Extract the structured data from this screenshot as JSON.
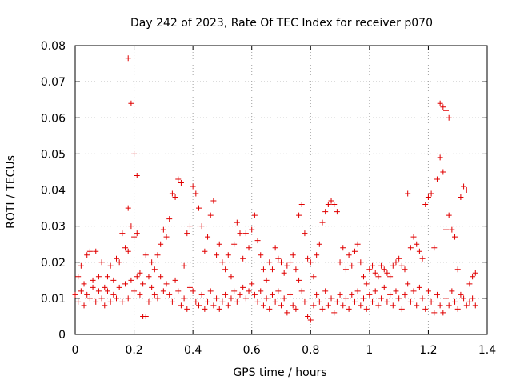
{
  "chart_data": {
    "type": "scatter",
    "title": "Day 242 of 2023, Rate Of TEC Index for receiver p070",
    "xlabel": "GPS time / hours",
    "ylabel": "ROTI / TECUs",
    "xlim": [
      0,
      1.4
    ],
    "ylim": [
      0,
      0.08
    ],
    "xticks": [
      "0",
      "0.2",
      "0.4",
      "0.6",
      "0.8",
      "1",
      "1.2",
      "1.4"
    ],
    "yticks": [
      "0",
      "0.01",
      "0.02",
      "0.03",
      "0.04",
      "0.05",
      "0.06",
      "0.07",
      "0.08"
    ],
    "grid": true,
    "marker": "+",
    "color": "#e00000",
    "series": [
      {
        "points": [
          [
            0.0,
            0.011
          ],
          [
            0.01,
            0.016
          ],
          [
            0.01,
            0.009
          ],
          [
            0.02,
            0.019
          ],
          [
            0.02,
            0.012
          ],
          [
            0.03,
            0.014
          ],
          [
            0.03,
            0.008
          ],
          [
            0.04,
            0.022
          ],
          [
            0.04,
            0.011
          ],
          [
            0.05,
            0.023
          ],
          [
            0.05,
            0.01
          ],
          [
            0.06,
            0.015
          ],
          [
            0.06,
            0.013
          ],
          [
            0.07,
            0.023
          ],
          [
            0.07,
            0.009
          ],
          [
            0.08,
            0.012
          ],
          [
            0.08,
            0.016
          ],
          [
            0.09,
            0.02
          ],
          [
            0.09,
            0.01
          ],
          [
            0.1,
            0.013
          ],
          [
            0.1,
            0.008
          ],
          [
            0.11,
            0.016
          ],
          [
            0.11,
            0.012
          ],
          [
            0.12,
            0.019
          ],
          [
            0.12,
            0.009
          ],
          [
            0.13,
            0.011
          ],
          [
            0.13,
            0.015
          ],
          [
            0.14,
            0.021
          ],
          [
            0.14,
            0.01
          ],
          [
            0.15,
            0.02
          ],
          [
            0.15,
            0.013
          ],
          [
            0.16,
            0.028
          ],
          [
            0.16,
            0.009
          ],
          [
            0.17,
            0.024
          ],
          [
            0.17,
            0.014
          ],
          [
            0.18,
            0.0765
          ],
          [
            0.18,
            0.035
          ],
          [
            0.18,
            0.023
          ],
          [
            0.18,
            0.01
          ],
          [
            0.19,
            0.064
          ],
          [
            0.19,
            0.03
          ],
          [
            0.19,
            0.015
          ],
          [
            0.2,
            0.05
          ],
          [
            0.2,
            0.027
          ],
          [
            0.2,
            0.012
          ],
          [
            0.21,
            0.044
          ],
          [
            0.21,
            0.028
          ],
          [
            0.21,
            0.016
          ],
          [
            0.22,
            0.017
          ],
          [
            0.22,
            0.011
          ],
          [
            0.23,
            0.005
          ],
          [
            0.23,
            0.014
          ],
          [
            0.24,
            0.005
          ],
          [
            0.24,
            0.022
          ],
          [
            0.25,
            0.016
          ],
          [
            0.25,
            0.009
          ],
          [
            0.26,
            0.02
          ],
          [
            0.26,
            0.013
          ],
          [
            0.27,
            0.018
          ],
          [
            0.27,
            0.011
          ],
          [
            0.28,
            0.022
          ],
          [
            0.28,
            0.01
          ],
          [
            0.29,
            0.025
          ],
          [
            0.29,
            0.016
          ],
          [
            0.3,
            0.029
          ],
          [
            0.3,
            0.012
          ],
          [
            0.31,
            0.027
          ],
          [
            0.31,
            0.014
          ],
          [
            0.32,
            0.032
          ],
          [
            0.32,
            0.011
          ],
          [
            0.33,
            0.039
          ],
          [
            0.33,
            0.009
          ],
          [
            0.34,
            0.038
          ],
          [
            0.34,
            0.015
          ],
          [
            0.35,
            0.043
          ],
          [
            0.35,
            0.012
          ],
          [
            0.36,
            0.042
          ],
          [
            0.36,
            0.008
          ],
          [
            0.37,
            0.019
          ],
          [
            0.37,
            0.01
          ],
          [
            0.38,
            0.028
          ],
          [
            0.38,
            0.007
          ],
          [
            0.39,
            0.03
          ],
          [
            0.39,
            0.013
          ],
          [
            0.4,
            0.041
          ],
          [
            0.4,
            0.012
          ],
          [
            0.41,
            0.039
          ],
          [
            0.41,
            0.009
          ],
          [
            0.42,
            0.035
          ],
          [
            0.42,
            0.008
          ],
          [
            0.43,
            0.03
          ],
          [
            0.43,
            0.011
          ],
          [
            0.44,
            0.023
          ],
          [
            0.44,
            0.007
          ],
          [
            0.45,
            0.027
          ],
          [
            0.45,
            0.009
          ],
          [
            0.46,
            0.033
          ],
          [
            0.46,
            0.012
          ],
          [
            0.47,
            0.037
          ],
          [
            0.47,
            0.008
          ],
          [
            0.48,
            0.022
          ],
          [
            0.48,
            0.01
          ],
          [
            0.49,
            0.025
          ],
          [
            0.49,
            0.007
          ],
          [
            0.5,
            0.02
          ],
          [
            0.5,
            0.009
          ],
          [
            0.51,
            0.018
          ],
          [
            0.51,
            0.011
          ],
          [
            0.52,
            0.022
          ],
          [
            0.52,
            0.008
          ],
          [
            0.53,
            0.016
          ],
          [
            0.53,
            0.01
          ],
          [
            0.54,
            0.025
          ],
          [
            0.54,
            0.012
          ],
          [
            0.55,
            0.031
          ],
          [
            0.55,
            0.009
          ],
          [
            0.56,
            0.028
          ],
          [
            0.56,
            0.011
          ],
          [
            0.57,
            0.021
          ],
          [
            0.57,
            0.013
          ],
          [
            0.58,
            0.028
          ],
          [
            0.58,
            0.01
          ],
          [
            0.59,
            0.024
          ],
          [
            0.59,
            0.012
          ],
          [
            0.6,
            0.029
          ],
          [
            0.6,
            0.014
          ],
          [
            0.61,
            0.033
          ],
          [
            0.61,
            0.011
          ],
          [
            0.62,
            0.026
          ],
          [
            0.62,
            0.009
          ],
          [
            0.63,
            0.022
          ],
          [
            0.63,
            0.012
          ],
          [
            0.64,
            0.018
          ],
          [
            0.64,
            0.008
          ],
          [
            0.65,
            0.015
          ],
          [
            0.65,
            0.01
          ],
          [
            0.66,
            0.02
          ],
          [
            0.66,
            0.007
          ],
          [
            0.67,
            0.018
          ],
          [
            0.67,
            0.011
          ],
          [
            0.68,
            0.024
          ],
          [
            0.68,
            0.009
          ],
          [
            0.69,
            0.021
          ],
          [
            0.69,
            0.012
          ],
          [
            0.7,
            0.02
          ],
          [
            0.7,
            0.008
          ],
          [
            0.71,
            0.017
          ],
          [
            0.71,
            0.01
          ],
          [
            0.72,
            0.019
          ],
          [
            0.72,
            0.006
          ],
          [
            0.73,
            0.02
          ],
          [
            0.73,
            0.011
          ],
          [
            0.74,
            0.022
          ],
          [
            0.74,
            0.008
          ],
          [
            0.75,
            0.018
          ],
          [
            0.75,
            0.007
          ],
          [
            0.76,
            0.033
          ],
          [
            0.76,
            0.015
          ],
          [
            0.77,
            0.036
          ],
          [
            0.77,
            0.012
          ],
          [
            0.78,
            0.028
          ],
          [
            0.78,
            0.009
          ],
          [
            0.79,
            0.021
          ],
          [
            0.79,
            0.005
          ],
          [
            0.8,
            0.02
          ],
          [
            0.8,
            0.004
          ],
          [
            0.81,
            0.016
          ],
          [
            0.81,
            0.008
          ],
          [
            0.82,
            0.022
          ],
          [
            0.82,
            0.011
          ],
          [
            0.83,
            0.025
          ],
          [
            0.83,
            0.009
          ],
          [
            0.84,
            0.031
          ],
          [
            0.84,
            0.007
          ],
          [
            0.85,
            0.034
          ],
          [
            0.85,
            0.012
          ],
          [
            0.86,
            0.036
          ],
          [
            0.86,
            0.008
          ],
          [
            0.87,
            0.037
          ],
          [
            0.87,
            0.01
          ],
          [
            0.88,
            0.036
          ],
          [
            0.88,
            0.006
          ],
          [
            0.89,
            0.034
          ],
          [
            0.89,
            0.009
          ],
          [
            0.9,
            0.02
          ],
          [
            0.9,
            0.011
          ],
          [
            0.91,
            0.024
          ],
          [
            0.91,
            0.008
          ],
          [
            0.92,
            0.018
          ],
          [
            0.92,
            0.01
          ],
          [
            0.93,
            0.022
          ],
          [
            0.93,
            0.007
          ],
          [
            0.94,
            0.019
          ],
          [
            0.94,
            0.011
          ],
          [
            0.95,
            0.023
          ],
          [
            0.95,
            0.009
          ],
          [
            0.96,
            0.025
          ],
          [
            0.96,
            0.012
          ],
          [
            0.97,
            0.02
          ],
          [
            0.97,
            0.008
          ],
          [
            0.98,
            0.016
          ],
          [
            0.98,
            0.01
          ],
          [
            0.99,
            0.014
          ],
          [
            0.99,
            0.007
          ],
          [
            1.0,
            0.018
          ],
          [
            1.0,
            0.011
          ],
          [
            1.01,
            0.019
          ],
          [
            1.01,
            0.009
          ],
          [
            1.02,
            0.017
          ],
          [
            1.02,
            0.012
          ],
          [
            1.03,
            0.016
          ],
          [
            1.03,
            0.008
          ],
          [
            1.04,
            0.019
          ],
          [
            1.04,
            0.01
          ],
          [
            1.05,
            0.018
          ],
          [
            1.05,
            0.013
          ],
          [
            1.06,
            0.017
          ],
          [
            1.06,
            0.009
          ],
          [
            1.07,
            0.016
          ],
          [
            1.07,
            0.011
          ],
          [
            1.08,
            0.019
          ],
          [
            1.08,
            0.008
          ],
          [
            1.09,
            0.02
          ],
          [
            1.09,
            0.012
          ],
          [
            1.1,
            0.021
          ],
          [
            1.1,
            0.01
          ],
          [
            1.11,
            0.019
          ],
          [
            1.11,
            0.007
          ],
          [
            1.12,
            0.018
          ],
          [
            1.12,
            0.011
          ],
          [
            1.13,
            0.039
          ],
          [
            1.13,
            0.014
          ],
          [
            1.14,
            0.024
          ],
          [
            1.14,
            0.009
          ],
          [
            1.15,
            0.027
          ],
          [
            1.15,
            0.012
          ],
          [
            1.16,
            0.025
          ],
          [
            1.16,
            0.008
          ],
          [
            1.17,
            0.023
          ],
          [
            1.17,
            0.013
          ],
          [
            1.18,
            0.021
          ],
          [
            1.18,
            0.01
          ],
          [
            1.19,
            0.036
          ],
          [
            1.19,
            0.007
          ],
          [
            1.2,
            0.038
          ],
          [
            1.2,
            0.012
          ],
          [
            1.21,
            0.039
          ],
          [
            1.21,
            0.009
          ],
          [
            1.22,
            0.024
          ],
          [
            1.22,
            0.006
          ],
          [
            1.23,
            0.043
          ],
          [
            1.23,
            0.011
          ],
          [
            1.24,
            0.064
          ],
          [
            1.24,
            0.049
          ],
          [
            1.24,
            0.008
          ],
          [
            1.25,
            0.063
          ],
          [
            1.25,
            0.045
          ],
          [
            1.25,
            0.006
          ],
          [
            1.26,
            0.062
          ],
          [
            1.26,
            0.029
          ],
          [
            1.26,
            0.01
          ],
          [
            1.27,
            0.06
          ],
          [
            1.27,
            0.033
          ],
          [
            1.27,
            0.008
          ],
          [
            1.28,
            0.029
          ],
          [
            1.28,
            0.012
          ],
          [
            1.29,
            0.027
          ],
          [
            1.29,
            0.009
          ],
          [
            1.3,
            0.018
          ],
          [
            1.3,
            0.007
          ],
          [
            1.31,
            0.038
          ],
          [
            1.31,
            0.011
          ],
          [
            1.32,
            0.041
          ],
          [
            1.32,
            0.01
          ],
          [
            1.33,
            0.04
          ],
          [
            1.33,
            0.008
          ],
          [
            1.34,
            0.014
          ],
          [
            1.34,
            0.009
          ],
          [
            1.35,
            0.016
          ],
          [
            1.35,
            0.01
          ],
          [
            1.36,
            0.017
          ],
          [
            1.36,
            0.008
          ]
        ]
      }
    ]
  }
}
